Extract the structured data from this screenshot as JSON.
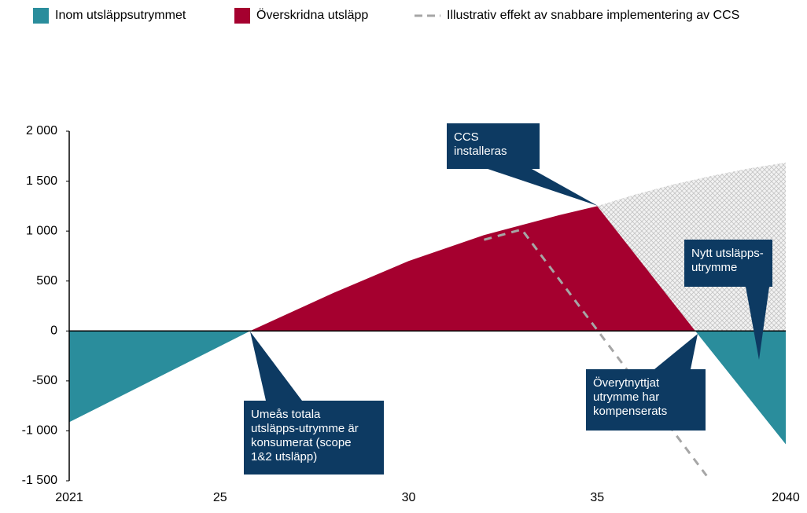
{
  "chart_data": {
    "type": "area",
    "xlim": [
      2021,
      2040
    ],
    "xticks": [
      2021,
      {
        "value": 2025,
        "label": "25"
      },
      {
        "value": 2030,
        "label": "30"
      },
      {
        "value": 2035,
        "label": "35"
      },
      2040
    ],
    "ylim": [
      -1500,
      2000
    ],
    "yticks": [
      {
        "value": 2000,
        "label": "2 000"
      },
      {
        "value": 1500,
        "label": "1 500"
      },
      {
        "value": 1000,
        "label": "1 000"
      },
      500,
      0,
      -500,
      {
        "value": -1000,
        "label": "-1 000"
      },
      {
        "value": -1500,
        "label": "-1 500"
      }
    ],
    "series": [
      {
        "name": "Inom utsläppsutrymmet",
        "color": "#2a8d9c",
        "x": [
          2021,
          2025.8
        ],
        "values": [
          -913,
          0
        ]
      },
      {
        "color": "#2a8d9c",
        "x": [
          2037.6,
          2040
        ],
        "values": [
          0,
          -1134
        ]
      },
      {
        "color": "#c8c8c8",
        "pattern": "hatch",
        "x": [
          2035,
          2036,
          2037,
          2038,
          2039,
          2040
        ],
        "values": [
          1250,
          1365,
          1465,
          1550,
          1625,
          1685
        ]
      },
      {
        "name": "Överskridna utsläpp",
        "color": "#a5002f",
        "x": [
          2025.8,
          2028,
          2030,
          2032,
          2034,
          2035,
          2037.6
        ],
        "values": [
          0,
          380,
          700,
          960,
          1160,
          1250,
          0
        ]
      },
      {
        "name": "Illustrativ effekt av snabbare implementering av CCS",
        "color": "#a6a6a6",
        "dashed": true,
        "x": [
          2032,
          2033,
          2037.9
        ],
        "values": [
          913,
          1016,
          -1449
        ]
      }
    ],
    "annotations": [
      {
        "lines": [
          "CCS",
          "installeras"
        ]
      },
      {
        "lines": [
          "Nytt utsläpps-",
          "utrymme"
        ]
      },
      {
        "lines": [
          "Överytnyttjat",
          "utrymme har",
          "kompenserats"
        ]
      },
      {
        "lines": [
          "Umeås totala",
          "utsläpps-utrymme är",
          "konsumerat (scope",
          "1&2 utsläpp)"
        ]
      }
    ]
  }
}
